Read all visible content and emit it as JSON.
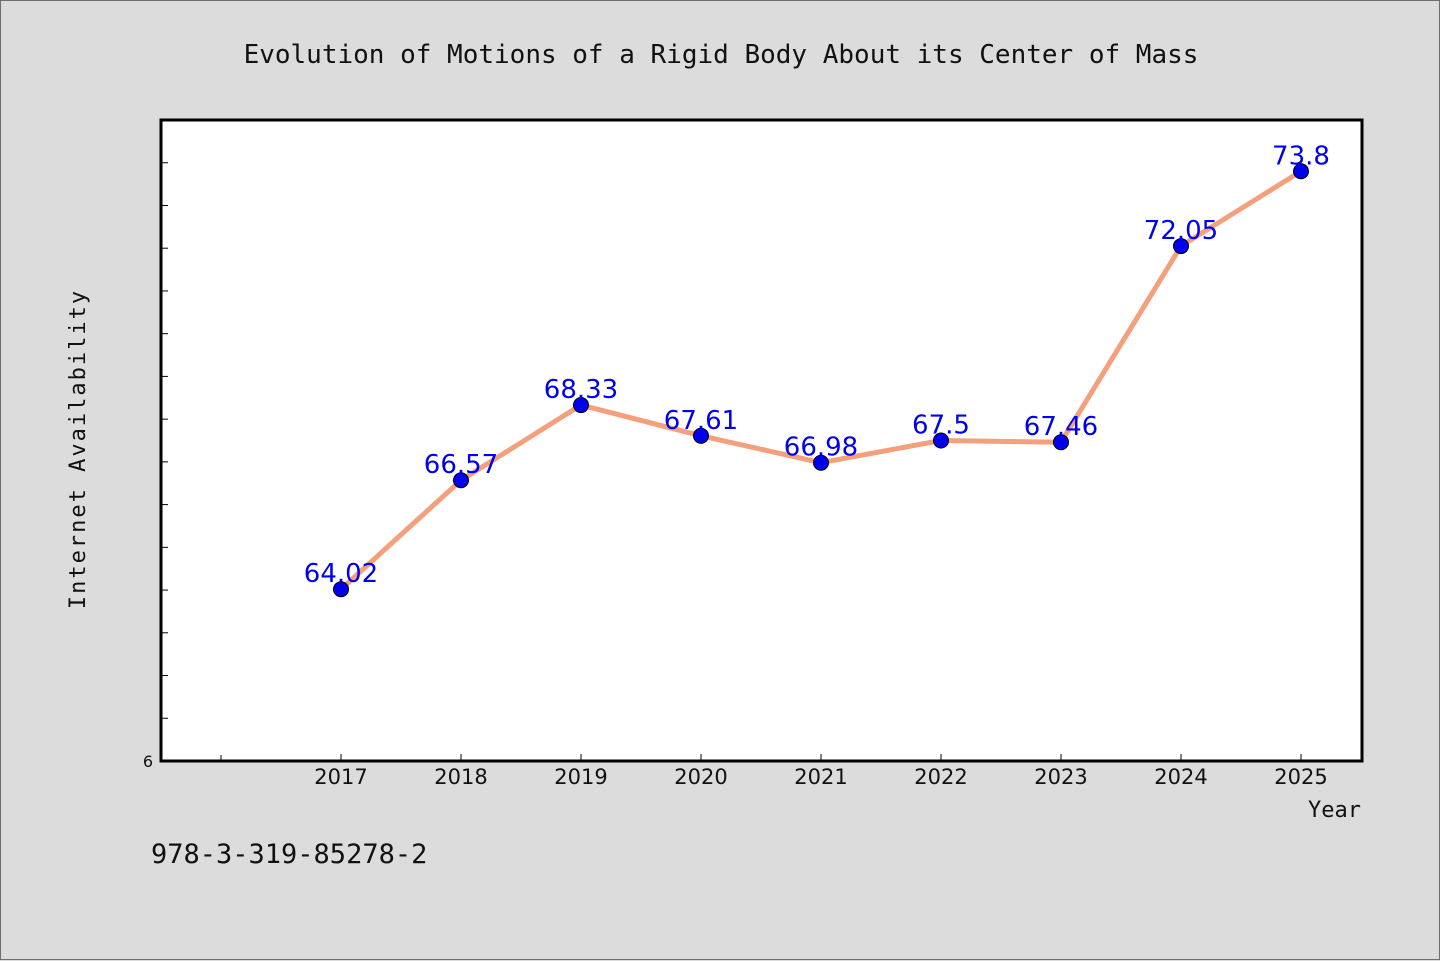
{
  "chart_data": {
    "type": "line",
    "title": "Evolution of Motions of a Rigid Body About its Center of Mass",
    "xlabel": "Year",
    "ylabel": "Internet Availability",
    "categories": [
      "2017",
      "2018",
      "2019",
      "2020",
      "2021",
      "2022",
      "2023",
      "2024",
      "2025"
    ],
    "series": [
      {
        "values": [
          64.02,
          66.57,
          68.33,
          67.61,
          66.98,
          67.5,
          67.46,
          72.05,
          73.8
        ],
        "labels": [
          "64.02",
          "66.57",
          "68.33",
          "67.61",
          "66.98",
          "67.5",
          "67.46",
          "72.05",
          "73.8"
        ]
      }
    ],
    "ylim": [
      60,
      75
    ],
    "y_tick_labels": [
      "6"
    ],
    "grid": false,
    "colors": {
      "line": "#f4a07c",
      "marker": "#0000ee",
      "data_label": "#0000ee",
      "plot_background": "#ffffff",
      "page_background": "#dcdcdc"
    }
  },
  "footer": {
    "isbn": "978-3-319-85278-2"
  }
}
